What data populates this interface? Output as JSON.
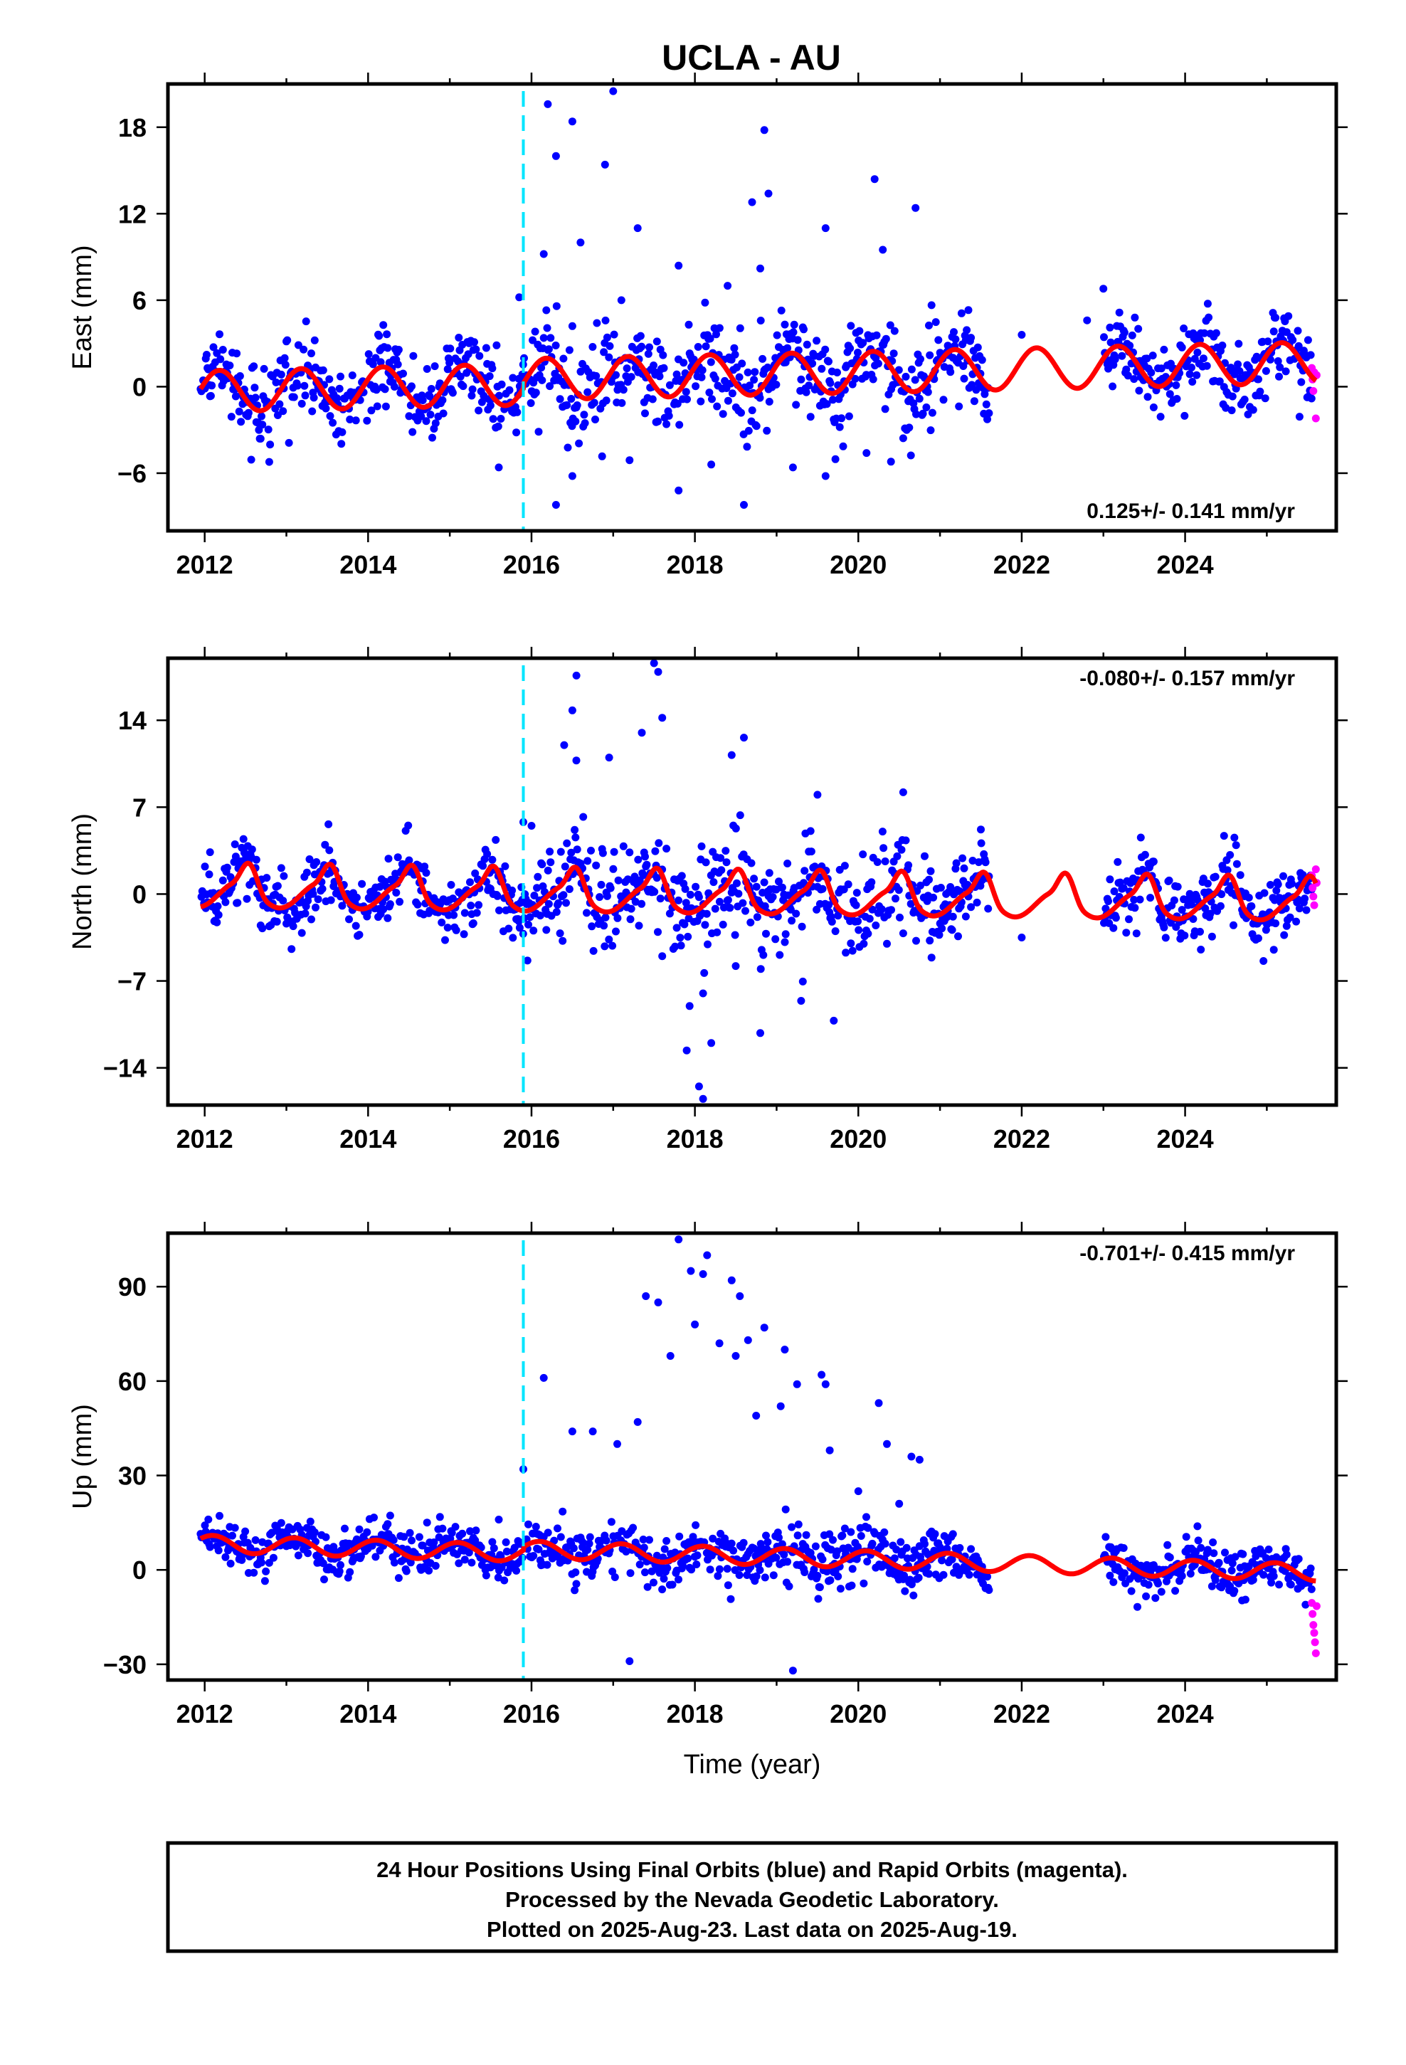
{
  "chart_data": {
    "type": "scatter",
    "title": "UCLA - AU",
    "xlabel": "Time (year)",
    "x_ticks": [
      2012,
      2014,
      2016,
      2018,
      2020,
      2022,
      2024
    ],
    "xlim": [
      2011.55,
      2025.85
    ],
    "equipment_change": 2015.9,
    "colors": {
      "final_orbits": "#0000ff",
      "rapid_orbits": "#ff00ff",
      "model_fit": "#ff0000",
      "equipment_change_line": "#00e5ff"
    },
    "panels": [
      {
        "name": "East",
        "ylabel": "East (mm)",
        "ylim": [
          -10,
          21
        ],
        "y_ticks": [
          18,
          12,
          6,
          0,
          -6
        ],
        "y_tick_labels": [
          "18",
          "12",
          "6",
          "0",
          "−6"
        ],
        "rate_text": "0.125+/- 0.141 mm/yr",
        "rate_position": "bottom-right",
        "data_gap": [
          2021.6,
          2023.0
        ],
        "rapid_points": [
          [
            2025.55,
            1.3
          ],
          [
            2025.56,
            0.5
          ],
          [
            2025.57,
            -0.3
          ],
          [
            2025.58,
            1.0
          ],
          [
            2025.6,
            -2.2
          ],
          [
            2025.61,
            0.8
          ]
        ],
        "outliers": [
          [
            2016.2,
            19.6
          ],
          [
            2016.5,
            18.4
          ],
          [
            2017.0,
            20.5
          ],
          [
            2016.3,
            16.0
          ],
          [
            2016.9,
            15.4
          ],
          [
            2018.85,
            17.8
          ],
          [
            2020.2,
            14.4
          ],
          [
            2020.7,
            12.4
          ],
          [
            2016.6,
            10.0
          ],
          [
            2018.7,
            12.8
          ],
          [
            2018.9,
            13.4
          ],
          [
            2019.6,
            11.0
          ],
          [
            2020.3,
            9.5
          ],
          [
            2015.85,
            6.2
          ],
          [
            2016.15,
            9.2
          ],
          [
            2016.5,
            4.2
          ],
          [
            2017.3,
            11.0
          ],
          [
            2017.8,
            8.4
          ],
          [
            2017.1,
            6.0
          ],
          [
            2018.4,
            7.0
          ],
          [
            2018.8,
            8.2
          ],
          [
            2016.3,
            -8.2
          ],
          [
            2016.5,
            -6.2
          ],
          [
            2017.8,
            -7.2
          ],
          [
            2018.6,
            -8.2
          ],
          [
            2019.2,
            -5.6
          ],
          [
            2019.6,
            -6.2
          ],
          [
            2020.1,
            -4.6
          ],
          [
            2015.6,
            -5.6
          ],
          [
            2017.2,
            -5.1
          ],
          [
            2018.2,
            -5.4
          ],
          [
            2020.4,
            -5.2
          ],
          [
            2022.0,
            3.6
          ],
          [
            2022.8,
            4.6
          ],
          [
            2023.0,
            6.8
          ]
        ]
      },
      {
        "name": "North",
        "ylabel": "North (mm)",
        "ylim": [
          -17,
          19
        ],
        "y_ticks": [
          14,
          7,
          0,
          -7,
          -14
        ],
        "y_tick_labels": [
          "14",
          "7",
          "0",
          "−7",
          "−14"
        ],
        "rate_text": "-0.080+/- 0.157 mm/yr",
        "rate_position": "top-right",
        "data_gap": [
          2021.6,
          2023.0
        ],
        "rapid_points": [
          [
            2025.55,
            1.5
          ],
          [
            2025.56,
            0.5
          ],
          [
            2025.57,
            -0.2
          ],
          [
            2025.58,
            -0.9
          ],
          [
            2025.6,
            2.0
          ],
          [
            2025.61,
            0.9
          ]
        ],
        "outliers": [
          [
            2016.55,
            17.6
          ],
          [
            2017.5,
            18.6
          ],
          [
            2017.55,
            17.9
          ],
          [
            2016.5,
            14.8
          ],
          [
            2017.6,
            14.2
          ],
          [
            2018.6,
            12.6
          ],
          [
            2016.0,
            5.5
          ],
          [
            2015.9,
            5.8
          ],
          [
            2016.4,
            12.0
          ],
          [
            2016.95,
            11.0
          ],
          [
            2017.35,
            13.0
          ],
          [
            2018.45,
            11.2
          ],
          [
            2019.5,
            8.0
          ],
          [
            2020.55,
            8.2
          ],
          [
            2021.5,
            5.2
          ],
          [
            2018.1,
            -16.5
          ],
          [
            2018.05,
            -15.5
          ],
          [
            2017.9,
            -12.6
          ],
          [
            2018.2,
            -12.0
          ],
          [
            2018.8,
            -11.2
          ],
          [
            2019.3,
            -8.6
          ],
          [
            2019.7,
            -10.2
          ],
          [
            2018.1,
            -8.0
          ],
          [
            2017.6,
            -5.0
          ],
          [
            2018.5,
            -5.8
          ],
          [
            2022.0,
            -3.5
          ]
        ]
      },
      {
        "name": "Up",
        "ylabel": "Up (mm)",
        "ylim": [
          -35,
          107
        ],
        "y_ticks": [
          90,
          60,
          30,
          0,
          -30
        ],
        "y_tick_labels": [
          "90",
          "60",
          "30",
          "0",
          "−30"
        ],
        "rate_text": "-0.701+/- 0.415 mm/yr",
        "rate_position": "top-right",
        "data_gap": [
          2021.6,
          2023.0
        ],
        "rapid_points": [
          [
            2025.55,
            -10.5
          ],
          [
            2025.56,
            -14.0
          ],
          [
            2025.57,
            -17.5
          ],
          [
            2025.58,
            -20.0
          ],
          [
            2025.59,
            -23.0
          ],
          [
            2025.6,
            -26.5
          ],
          [
            2025.61,
            -11.5
          ]
        ],
        "outliers": [
          [
            2017.8,
            105
          ],
          [
            2017.4,
            87
          ],
          [
            2017.95,
            95
          ],
          [
            2018.15,
            100
          ],
          [
            2018.1,
            94
          ],
          [
            2017.55,
            85
          ],
          [
            2018.45,
            92
          ],
          [
            2018.55,
            87
          ],
          [
            2018.85,
            77
          ],
          [
            2018.3,
            72
          ],
          [
            2018.65,
            73
          ],
          [
            2019.1,
            70
          ],
          [
            2019.55,
            62
          ],
          [
            2019.6,
            59
          ],
          [
            2020.25,
            53
          ],
          [
            2016.15,
            61
          ],
          [
            2018.0,
            78
          ],
          [
            2017.7,
            68
          ],
          [
            2018.5,
            68
          ],
          [
            2019.25,
            59
          ],
          [
            2016.5,
            44
          ],
          [
            2016.75,
            44
          ],
          [
            2017.05,
            40
          ],
          [
            2017.3,
            47
          ],
          [
            2018.75,
            49
          ],
          [
            2019.05,
            52
          ],
          [
            2019.65,
            38
          ],
          [
            2020.35,
            40
          ],
          [
            2020.65,
            36
          ],
          [
            2020.75,
            35
          ],
          [
            2017.2,
            -29
          ],
          [
            2019.2,
            -32
          ],
          [
            2015.6,
            16
          ],
          [
            2015.9,
            32
          ],
          [
            2020.0,
            25
          ],
          [
            2020.5,
            21
          ]
        ]
      }
    ],
    "caption_lines": [
      "24 Hour Positions Using Final Orbits (blue) and Rapid Orbits (magenta).",
      "Processed by the Nevada Geodetic Laboratory.",
      "Plotted on 2025-Aug-23. Last data on 2025-Aug-19."
    ]
  }
}
